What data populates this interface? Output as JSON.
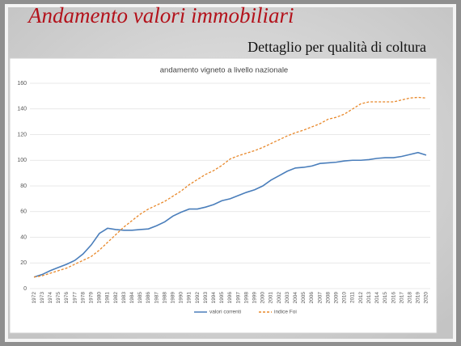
{
  "slide": {
    "title": "Andamento valori immobiliari",
    "subtitle": "Dettaglio per qualità di coltura"
  },
  "chart_data": {
    "type": "line",
    "title": "andamento vigneto a livello nazionale",
    "categories": [
      "1972",
      "1973",
      "1974",
      "1975",
      "1976",
      "1977",
      "1978",
      "1979",
      "1980",
      "1981",
      "1982",
      "1983",
      "1984",
      "1985",
      "1986",
      "1987",
      "1988",
      "1989",
      "1990",
      "1991",
      "1992",
      "1993",
      "1994",
      "1995",
      "1996",
      "1997",
      "1998",
      "1999",
      "2000",
      "2001",
      "2002",
      "2003",
      "2004",
      "2005",
      "2006",
      "2007",
      "2008",
      "2009",
      "2010",
      "2011",
      "2012",
      "2013",
      "2014",
      "2015",
      "2016",
      "2017",
      "2018",
      "2019",
      "2020"
    ],
    "series": [
      {
        "name": "valori correnti",
        "color": "#4a7ebb",
        "dash": false,
        "values": [
          9,
          11,
          14,
          16.5,
          19,
          22,
          27,
          34,
          43,
          47,
          46,
          45.5,
          45.5,
          46,
          46.5,
          49,
          52,
          56.5,
          59.5,
          62,
          62,
          63.5,
          65.5,
          68.5,
          70,
          72.5,
          75,
          77,
          80,
          84.5,
          88,
          91.5,
          94,
          94.5,
          95.5,
          97.5,
          98,
          98.5,
          99.5,
          100,
          100,
          100.5,
          101.5,
          102,
          102,
          103,
          104.5,
          106,
          104
        ]
      },
      {
        "name": "indice Foi",
        "color": "#e8882a",
        "dash": true,
        "values": [
          9,
          10,
          12,
          14,
          16,
          19,
          22,
          25,
          30,
          36,
          42,
          48,
          53,
          58,
          62,
          65,
          68,
          72,
          76,
          81,
          85,
          89,
          92,
          96,
          101,
          103.5,
          105.5,
          107.5,
          110,
          113,
          116,
          119,
          121.5,
          123.5,
          126,
          128.5,
          132,
          133.5,
          136,
          140,
          144,
          145.5,
          145.5,
          145.5,
          145.5,
          147,
          148.5,
          149,
          148.5
        ]
      }
    ],
    "ylim": [
      0,
      160
    ],
    "yticks": [
      0,
      20,
      40,
      60,
      80,
      100,
      120,
      140,
      160
    ],
    "grid": true,
    "legend": "bottom"
  }
}
